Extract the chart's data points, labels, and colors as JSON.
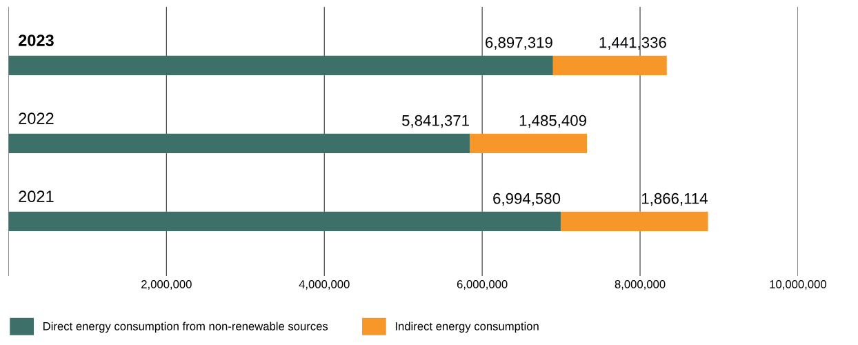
{
  "chart_data": {
    "type": "bar",
    "orientation": "horizontal",
    "stacked": true,
    "categories": [
      "2023",
      "2022",
      "2021"
    ],
    "series": [
      {
        "name": "Direct energy consumption from non-renewable sources",
        "color": "#3d7069",
        "values": [
          6897319,
          5841371,
          6994580
        ],
        "value_labels": [
          "6,897,319",
          "5,841,371",
          "6,994,580"
        ]
      },
      {
        "name": "Indirect energy consumption",
        "color": "#f7972a",
        "values": [
          1441336,
          1485409,
          1866114
        ],
        "value_labels": [
          "1,441,336",
          "1,485,409",
          "1,866,114"
        ]
      }
    ],
    "xlim": [
      0,
      10000000
    ],
    "xticks": [
      {
        "value": 0,
        "label": null
      },
      {
        "value": 2000000,
        "label": "2,000,000"
      },
      {
        "value": 4000000,
        "label": "4,000,000"
      },
      {
        "value": 6000000,
        "label": "6,000,000"
      },
      {
        "value": 8000000,
        "label": "8,000,000"
      },
      {
        "value": 10000000,
        "label": "10,000,000"
      }
    ],
    "grid": "x",
    "legend": "bottom left"
  }
}
